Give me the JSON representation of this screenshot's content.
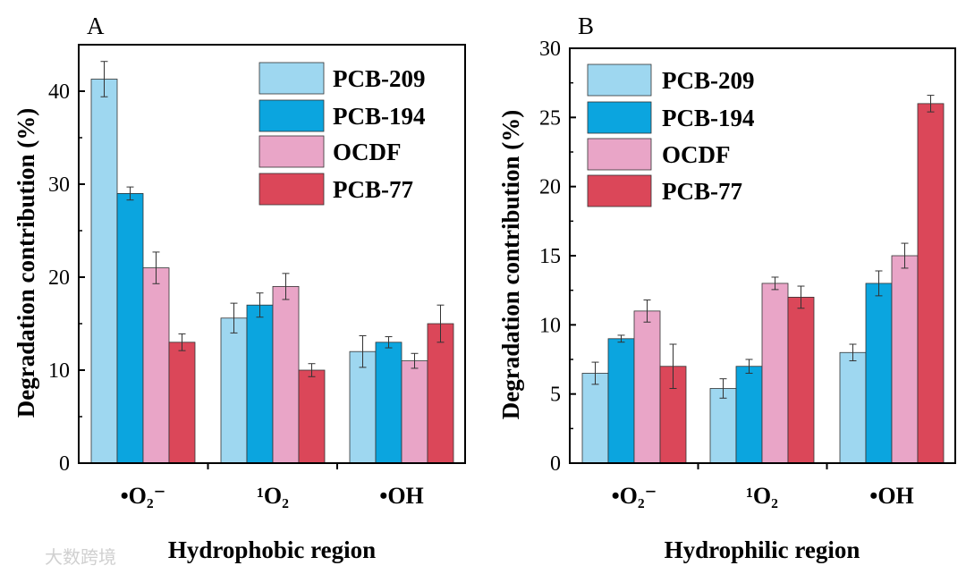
{
  "colors": {
    "PCB-209": "#9ed7f0",
    "PCB-194": "#0ba5df",
    "OCDF": "#e9a5c7",
    "PCB-77": "#db4759",
    "axis": "#000000",
    "error": "#333333"
  },
  "watermark": "大数跨境",
  "chart_data": [
    {
      "type": "bar",
      "panel_label": "A",
      "xlabel": "Hydrophobic region",
      "ylabel": "Degradation contribution (%)",
      "ylim": [
        0,
        45
      ],
      "yticks": [
        0,
        10,
        20,
        30,
        40
      ],
      "categories": [
        "•O₂⁻",
        "¹O₂",
        "•OH"
      ],
      "legend_position": "top-right",
      "series": [
        {
          "name": "PCB-209",
          "values": [
            41.3,
            15.6,
            12
          ],
          "errors": [
            1.9,
            1.6,
            1.7
          ]
        },
        {
          "name": "PCB-194",
          "values": [
            29,
            17,
            13
          ],
          "errors": [
            0.7,
            1.3,
            0.6
          ]
        },
        {
          "name": "OCDF",
          "values": [
            21,
            19,
            11
          ],
          "errors": [
            1.7,
            1.4,
            0.8
          ]
        },
        {
          "name": "PCB-77",
          "values": [
            13,
            10,
            15
          ],
          "errors": [
            0.9,
            0.7,
            2.0
          ]
        }
      ]
    },
    {
      "type": "bar",
      "panel_label": "B",
      "xlabel": "Hydrophilic region",
      "ylabel": "Degradation contribution (%)",
      "ylim": [
        0,
        30
      ],
      "yticks": [
        0,
        5,
        10,
        15,
        20,
        25,
        30
      ],
      "categories": [
        "•O₂⁻",
        "¹O₂",
        "•OH"
      ],
      "legend_position": "top-left",
      "series": [
        {
          "name": "PCB-209",
          "values": [
            6.5,
            5.4,
            8
          ],
          "errors": [
            0.8,
            0.7,
            0.6
          ]
        },
        {
          "name": "PCB-194",
          "values": [
            9,
            7,
            13
          ],
          "errors": [
            0.25,
            0.5,
            0.9
          ]
        },
        {
          "name": "OCDF",
          "values": [
            11,
            13,
            15
          ],
          "errors": [
            0.8,
            0.45,
            0.9
          ]
        },
        {
          "name": "PCB-77",
          "values": [
            7,
            12,
            26
          ],
          "errors": [
            1.6,
            0.8,
            0.6
          ]
        }
      ]
    }
  ]
}
